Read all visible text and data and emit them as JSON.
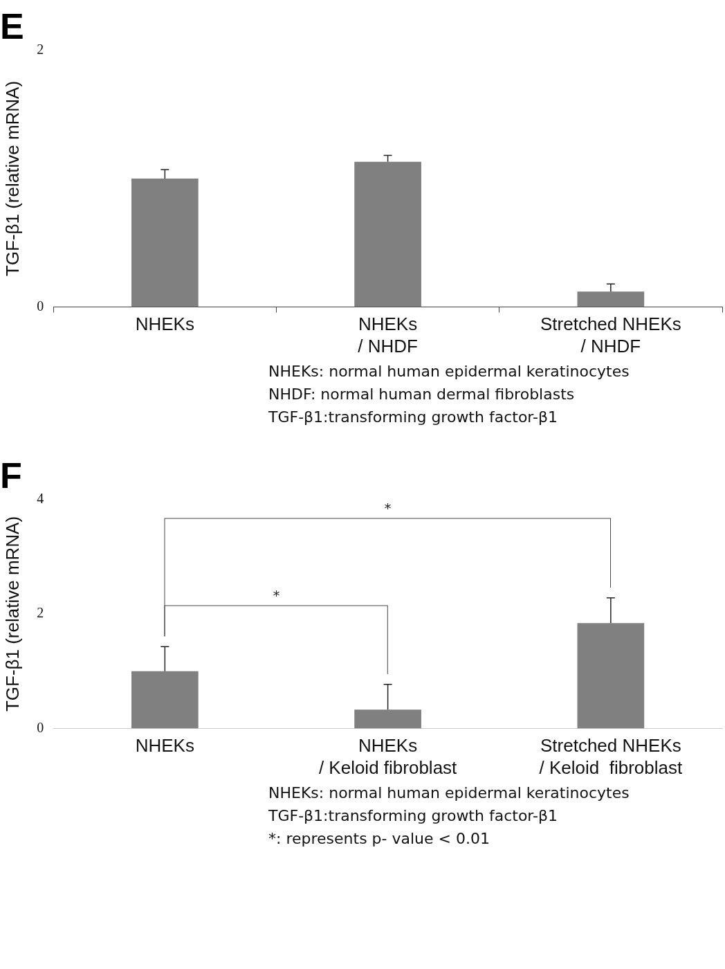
{
  "chart_data": [
    {
      "type": "bar",
      "title": "E",
      "ylabel": "TGF-β1 (relative mRNA)",
      "categories": [
        "NHEKs",
        "NHEKs\n/ NHDF",
        "Stretched NHEKs\n/ NHDF"
      ],
      "values": [
        1.0,
        1.13,
        0.12
      ],
      "errors": [
        0.07,
        0.05,
        0.06
      ],
      "color": "#808080",
      "ylim": [
        0,
        2
      ],
      "yticks": [
        0,
        2
      ],
      "grid": false,
      "legend": false,
      "annotations": [
        "NHEKs: normal human epidermal keratinocytes",
        "NHDF: normal human dermal fibroblasts",
        "TGF-β1:transforming growth factor-β1"
      ]
    },
    {
      "type": "bar",
      "title": "F",
      "ylabel": "TGF-β1 (relative mRNA)",
      "categories": [
        "NHEKs",
        "NHEKs\n/ Keloid fibroblast",
        "Stretched NHEKs\n/ Keloid  fibroblast"
      ],
      "values": [
        1.0,
        0.33,
        1.84
      ],
      "errors": [
        0.43,
        0.44,
        0.44
      ],
      "color": "#808080",
      "ylim": [
        0,
        4
      ],
      "yticks": [
        0,
        2,
        4
      ],
      "grid": false,
      "legend": false,
      "annotations": [
        "*",
        "*",
        "NHEKs: normal human epidermal keratinocytes",
        "TGF-β1:transforming growth factor-β1",
        "*: represents p- value < 0.01"
      ]
    }
  ]
}
